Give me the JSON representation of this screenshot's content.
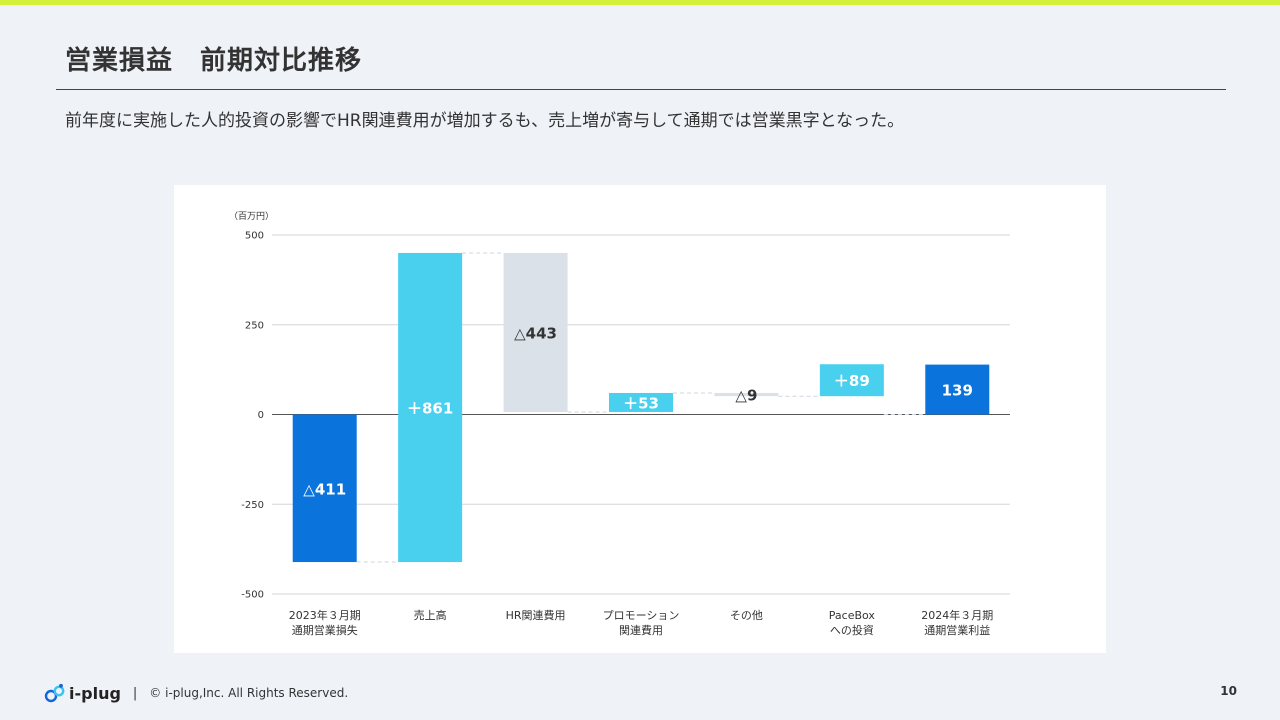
{
  "header": {
    "title": "営業損益　前期対比推移",
    "subtitle": "前年度に実施した人的投資の影響でHR関連費用が増加するも、売上増が寄与して通期では営業黒字となった。"
  },
  "colors": {
    "accent_bar": "#d4f03a",
    "dark_blue": "#0b74dc",
    "light_blue": "#4ad0ef",
    "gray": "#dbe1e9"
  },
  "chart_data": {
    "type": "waterfall",
    "unit_label": "（百万円）",
    "ylim": [
      -500,
      500
    ],
    "yticks": [
      500,
      250,
      0,
      -250,
      -500
    ],
    "categories": [
      [
        "2023年３月期",
        "通期営業損失"
      ],
      [
        "売上高"
      ],
      [
        "HR関連費用"
      ],
      [
        "プロモーション",
        "関連費用"
      ],
      [
        "その他"
      ],
      [
        "PaceBox",
        "への投資"
      ],
      [
        "2024年３月期",
        "通期営業利益"
      ]
    ],
    "steps": [
      {
        "kind": "total",
        "value": -411,
        "color": "dark_blue",
        "label": "△411",
        "label_color": "#ffffff"
      },
      {
        "kind": "delta",
        "value": 861,
        "color": "light_blue",
        "label": "＋861",
        "label_color": "#ffffff"
      },
      {
        "kind": "delta",
        "value": -443,
        "color": "gray",
        "label": "△443",
        "label_color": "#333333"
      },
      {
        "kind": "delta",
        "value": 53,
        "color": "light_blue",
        "label": "＋53",
        "label_color": "#ffffff"
      },
      {
        "kind": "delta",
        "value": -9,
        "color": "gray",
        "label": "△9",
        "label_color": "#333333"
      },
      {
        "kind": "delta",
        "value": 89,
        "color": "light_blue",
        "label": "＋89",
        "label_color": "#ffffff"
      },
      {
        "kind": "total",
        "value": 139,
        "color": "dark_blue",
        "label": "139",
        "label_color": "#ffffff"
      }
    ]
  },
  "footer": {
    "logo_text": "i-plug",
    "separator": "|",
    "copyright": "© i-plug,Inc.  All Rights Reserved.",
    "page_number": "10"
  }
}
